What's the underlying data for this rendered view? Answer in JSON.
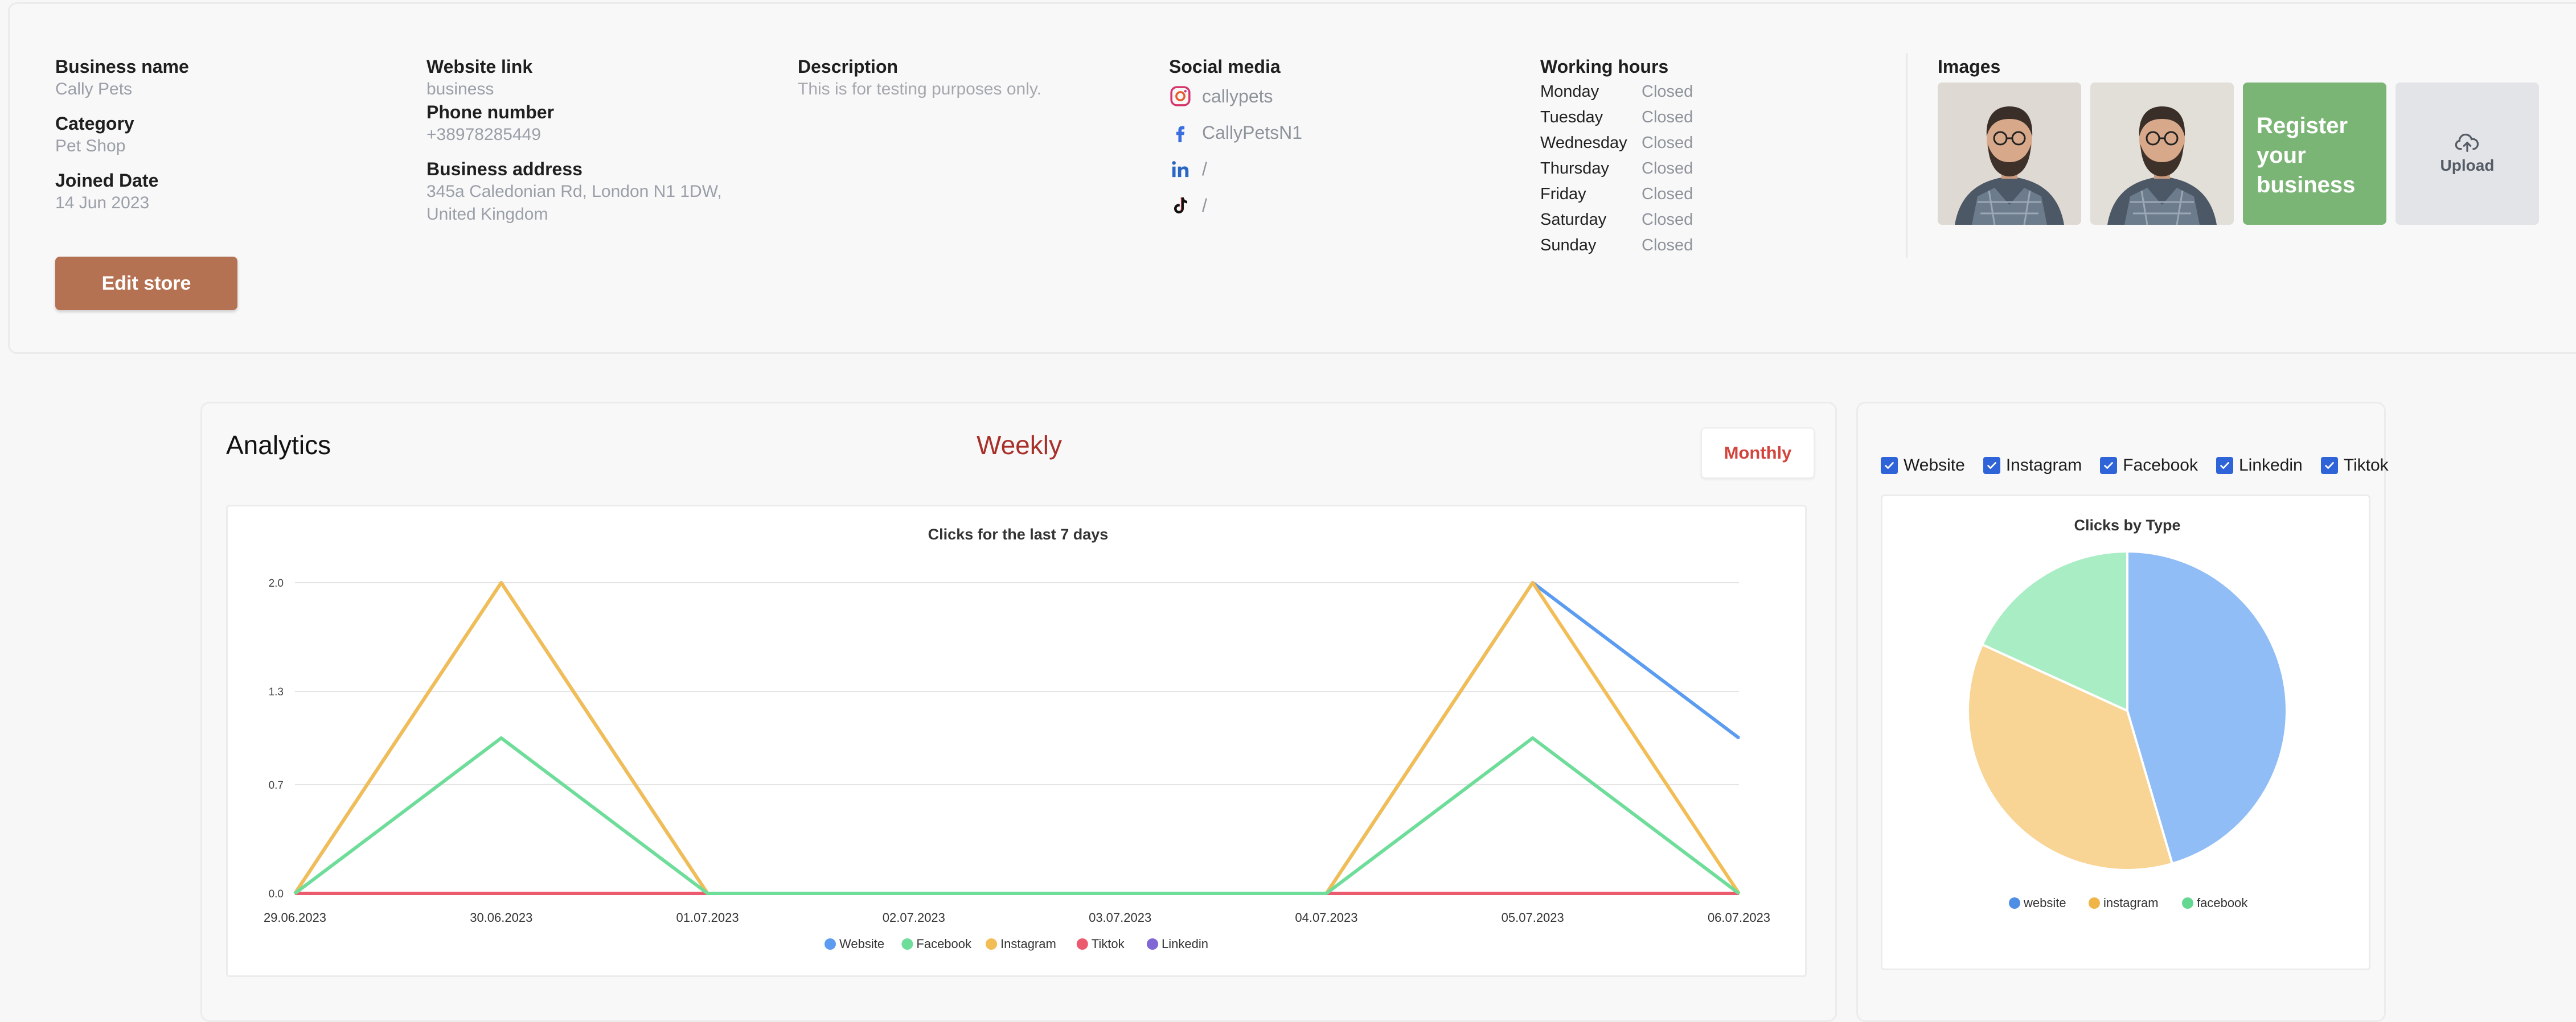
{
  "business": {
    "name_label": "Business name",
    "name_value": "Cally Pets",
    "category_label": "Category",
    "category_value": "Pet Shop",
    "joined_label": "Joined Date",
    "joined_value": "14 Jun 2023",
    "edit_button": "Edit store",
    "website_label": "Website link",
    "website_value": "business",
    "phone_label": "Phone number",
    "phone_value": "+38978285449",
    "address_label": "Business address",
    "address_line1": "345a Caledonian Rd, London N1 1DW,",
    "address_line2": "United Kingdom",
    "description_label": "Description",
    "description_value": "This is for testing purposes only."
  },
  "social": {
    "label": "Social media",
    "items": [
      {
        "icon": "instagram-icon",
        "text": "callypets"
      },
      {
        "icon": "facebook-icon",
        "text": "CallyPetsN1"
      },
      {
        "icon": "linkedin-icon",
        "text": "/"
      },
      {
        "icon": "tiktok-icon",
        "text": "/"
      }
    ]
  },
  "hours": {
    "label": "Working hours",
    "days": [
      {
        "day": "Monday",
        "status": "Closed"
      },
      {
        "day": "Tuesday",
        "status": "Closed"
      },
      {
        "day": "Wednesday",
        "status": "Closed"
      },
      {
        "day": "Thursday",
        "status": "Closed"
      },
      {
        "day": "Friday",
        "status": "Closed"
      },
      {
        "day": "Saturday",
        "status": "Closed"
      },
      {
        "day": "Sunday",
        "status": "Closed"
      }
    ]
  },
  "images": {
    "label": "Images",
    "promo_lines": [
      "Register",
      "your",
      "business"
    ],
    "upload_label": "Upload"
  },
  "analytics": {
    "title": "Analytics",
    "period": "Weekly",
    "toggle_button": "Monthly"
  },
  "filters": [
    {
      "label": "Website",
      "checked": true
    },
    {
      "label": "Instagram",
      "checked": true
    },
    {
      "label": "Facebook",
      "checked": true
    },
    {
      "label": "Linkedin",
      "checked": true
    },
    {
      "label": "Tiktok",
      "checked": true
    }
  ],
  "colors": {
    "accent": "#b57253",
    "promo": "#7bb576",
    "period": "#a8302a",
    "checkbox": "#2f64d8"
  },
  "chart_data": [
    {
      "type": "line",
      "title": "Clicks for the last 7 days",
      "x": [
        "29.06.2023",
        "30.06.2023",
        "01.07.2023",
        "02.07.2023",
        "03.07.2023",
        "04.07.2023",
        "05.07.2023",
        "06.07.2023"
      ],
      "yticks": [
        "0.0",
        "0.7",
        "1.3",
        "2.0"
      ],
      "ylim": [
        0,
        2
      ],
      "legend_position": "bottom",
      "series": [
        {
          "name": "Website",
          "color": "#5b9cf0",
          "values": [
            0,
            2,
            0,
            0,
            0,
            0,
            2,
            1
          ]
        },
        {
          "name": "Facebook",
          "color": "#6fdd9a",
          "values": [
            0,
            1,
            0,
            0,
            0,
            0,
            1,
            0
          ]
        },
        {
          "name": "Instagram",
          "color": "#f2bd55",
          "values": [
            0,
            2,
            0,
            0,
            0,
            0,
            2,
            0
          ]
        },
        {
          "name": "Tiktok",
          "color": "#ec5a6e",
          "values": [
            0,
            0,
            0,
            0,
            0,
            0,
            0,
            0
          ]
        },
        {
          "name": "Linkedin",
          "color": "#8166d6",
          "values": [
            0,
            0,
            0,
            0,
            0,
            0,
            0,
            0
          ]
        }
      ]
    },
    {
      "type": "pie",
      "title": "Clicks by Type",
      "legend_position": "bottom",
      "slices": [
        {
          "name": "website",
          "value": 5,
          "color": "#90bdf5"
        },
        {
          "name": "instagram",
          "value": 4,
          "color": "#f8d495"
        },
        {
          "name": "facebook",
          "value": 2,
          "color": "#a8edc4"
        }
      ],
      "legend_colors": [
        "#4e8fe6",
        "#f0b548",
        "#64d890"
      ]
    }
  ]
}
